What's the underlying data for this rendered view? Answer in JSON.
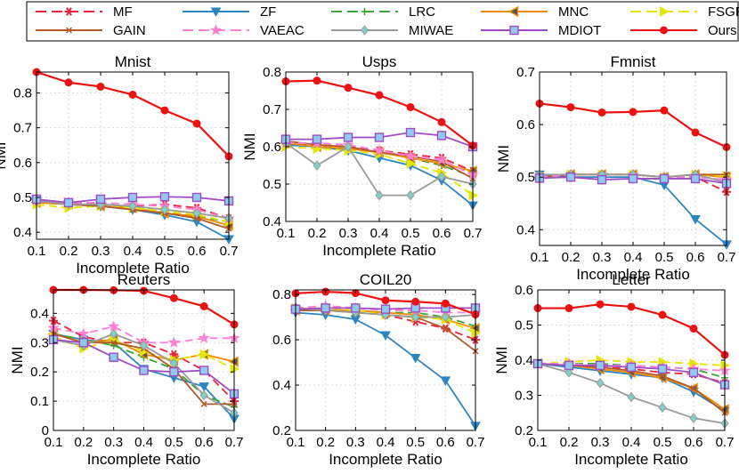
{
  "legend": {
    "entries": [
      {
        "name": "MF",
        "color": "#e8243c",
        "marker": "star6",
        "dash": "dash"
      },
      {
        "name": "ZF",
        "color": "#2e86c1",
        "marker": "tri-down",
        "dash": "solid"
      },
      {
        "name": "LRC",
        "color": "#3aa63a",
        "marker": "plus",
        "dash": "dash"
      },
      {
        "name": "MNC",
        "color": "#f08a00",
        "marker": "tri-left",
        "dash": "solid"
      },
      {
        "name": "FSGR",
        "color": "#e3e600",
        "marker": "tri-right",
        "dash": "dash"
      },
      {
        "name": "GAIN",
        "color": "#b25a2a",
        "marker": "x",
        "dash": "solid"
      },
      {
        "name": "VAEAC",
        "color": "#ff7fd5",
        "marker": "star5",
        "dash": "dash"
      },
      {
        "name": "MIWAE",
        "color": "#9a9a9a",
        "marker": "diamond",
        "dash": "solid"
      },
      {
        "name": "MDIOT",
        "color": "#a04cc4",
        "marker": "square",
        "dash": "solid"
      },
      {
        "name": "Ours",
        "color": "#ee1111",
        "marker": "circle",
        "dash": "solid"
      }
    ]
  },
  "chart_data": [
    {
      "type": "line",
      "title": "Mnist",
      "xlabel": "Incomplete Ratio",
      "ylabel": "NMI",
      "x": [
        0.1,
        0.2,
        0.3,
        0.4,
        0.5,
        0.6,
        0.7
      ],
      "xlim": [
        0.1,
        0.7
      ],
      "ylim": [
        0.38,
        0.86
      ],
      "yticks": [
        0.4,
        0.5,
        0.6,
        0.7,
        0.8
      ],
      "ytick_labels": [
        "0.4",
        "0.5",
        "0.6",
        "0.7",
        "0.8"
      ],
      "xtick_labels": [
        "0.1",
        "0.2",
        "0.3",
        "0.4",
        "0.5",
        "0.6",
        "0.7"
      ],
      "series": [
        {
          "name": "MF",
          "values": [
            0.49,
            0.485,
            0.48,
            0.475,
            0.48,
            0.47,
            0.44
          ]
        },
        {
          "name": "ZF",
          "values": [
            0.49,
            0.48,
            0.475,
            0.465,
            0.45,
            0.43,
            0.38
          ]
        },
        {
          "name": "LRC",
          "values": [
            0.485,
            0.48,
            0.48,
            0.47,
            0.46,
            0.445,
            0.43
          ]
        },
        {
          "name": "MNC",
          "values": [
            0.485,
            0.48,
            0.475,
            0.47,
            0.455,
            0.445,
            0.42
          ]
        },
        {
          "name": "FSGR",
          "values": [
            0.48,
            0.47,
            0.475,
            0.47,
            0.46,
            0.45,
            0.43
          ]
        },
        {
          "name": "GAIN",
          "values": [
            0.49,
            0.48,
            0.475,
            0.465,
            0.455,
            0.44,
            0.41
          ]
        },
        {
          "name": "VAEAC",
          "values": [
            0.49,
            0.485,
            0.485,
            0.48,
            0.475,
            0.465,
            0.44
          ]
        },
        {
          "name": "MIWAE",
          "values": [
            0.49,
            0.48,
            0.48,
            0.475,
            0.465,
            0.455,
            0.44
          ]
        },
        {
          "name": "MDIOT",
          "values": [
            0.495,
            0.485,
            0.495,
            0.5,
            0.502,
            0.5,
            0.49
          ]
        },
        {
          "name": "Ours",
          "values": [
            0.86,
            0.83,
            0.818,
            0.795,
            0.75,
            0.712,
            0.618
          ]
        }
      ]
    },
    {
      "type": "line",
      "title": "Usps",
      "xlabel": "Incomplete Ratio",
      "ylabel": "NMI",
      "x": [
        0.1,
        0.2,
        0.3,
        0.4,
        0.5,
        0.6,
        0.7
      ],
      "xlim": [
        0.1,
        0.7
      ],
      "ylim": [
        0.4,
        0.8
      ],
      "yticks": [
        0.4,
        0.5,
        0.6,
        0.7,
        0.8
      ],
      "ytick_labels": [
        "0.4",
        "0.5",
        "0.6",
        "0.7",
        "0.8"
      ],
      "xtick_labels": [
        "0.1",
        "0.2",
        "0.3",
        "0.4",
        "0.5",
        "0.6",
        "0.7"
      ],
      "series": [
        {
          "name": "MF",
          "values": [
            0.61,
            0.605,
            0.6,
            0.59,
            0.58,
            0.57,
            0.535
          ]
        },
        {
          "name": "ZF",
          "values": [
            0.605,
            0.6,
            0.59,
            0.57,
            0.55,
            0.51,
            0.443
          ]
        },
        {
          "name": "LRC",
          "values": [
            0.61,
            0.6,
            0.595,
            0.585,
            0.57,
            0.55,
            0.52
          ]
        },
        {
          "name": "MNC",
          "values": [
            0.61,
            0.6,
            0.595,
            0.585,
            0.57,
            0.555,
            0.535
          ]
        },
        {
          "name": "FSGR",
          "values": [
            0.6,
            0.595,
            0.59,
            0.58,
            0.555,
            0.53,
            0.47
          ]
        },
        {
          "name": "GAIN",
          "values": [
            0.615,
            0.605,
            0.6,
            0.585,
            0.575,
            0.56,
            0.515
          ]
        },
        {
          "name": "VAEAC",
          "values": [
            0.61,
            0.61,
            0.605,
            0.59,
            0.575,
            0.565,
            0.525
          ]
        },
        {
          "name": "MIWAE",
          "values": [
            0.61,
            0.55,
            0.6,
            0.47,
            0.47,
            0.52,
            0.5
          ]
        },
        {
          "name": "MDIOT",
          "values": [
            0.62,
            0.62,
            0.625,
            0.625,
            0.638,
            0.63,
            0.6
          ]
        },
        {
          "name": "Ours",
          "values": [
            0.775,
            0.777,
            0.758,
            0.738,
            0.706,
            0.666,
            0.603
          ]
        }
      ]
    },
    {
      "type": "line",
      "title": "Fmnist",
      "xlabel": "Incomplete Ratio",
      "ylabel": "NMI",
      "x": [
        0.1,
        0.2,
        0.3,
        0.4,
        0.5,
        0.6,
        0.7
      ],
      "xlim": [
        0.1,
        0.7
      ],
      "ylim": [
        0.37,
        0.7
      ],
      "yticks": [
        0.4,
        0.5,
        0.6,
        0.7
      ],
      "ytick_labels": [
        "0.4",
        "0.5",
        "0.6",
        "0.7"
      ],
      "xtick_labels": [
        "0.1",
        "0.2",
        "0.3",
        "0.4",
        "0.5",
        "0.6",
        "0.7"
      ],
      "series": [
        {
          "name": "MF",
          "values": [
            0.5,
            0.505,
            0.505,
            0.505,
            0.5,
            0.5,
            0.472
          ]
        },
        {
          "name": "ZF",
          "values": [
            0.505,
            0.5,
            0.5,
            0.5,
            0.485,
            0.42,
            0.372
          ]
        },
        {
          "name": "LRC",
          "values": [
            0.5,
            0.505,
            0.505,
            0.505,
            0.5,
            0.505,
            0.5
          ]
        },
        {
          "name": "MNC",
          "values": [
            0.5,
            0.505,
            0.505,
            0.505,
            0.5,
            0.505,
            0.5
          ]
        },
        {
          "name": "FSGR",
          "values": [
            0.5,
            0.505,
            0.505,
            0.505,
            0.5,
            0.505,
            0.502
          ]
        },
        {
          "name": "GAIN",
          "values": [
            0.5,
            0.505,
            0.505,
            0.505,
            0.5,
            0.505,
            0.505
          ]
        },
        {
          "name": "VAEAC",
          "values": [
            0.5,
            0.505,
            0.505,
            0.505,
            0.5,
            0.5,
            0.495
          ]
        },
        {
          "name": "MIWAE",
          "values": [
            0.505,
            0.505,
            0.505,
            0.505,
            0.5,
            0.505,
            0.49
          ]
        },
        {
          "name": "MDIOT",
          "values": [
            0.498,
            0.5,
            0.495,
            0.497,
            0.497,
            0.497,
            0.488
          ]
        },
        {
          "name": "Ours",
          "values": [
            0.64,
            0.633,
            0.623,
            0.624,
            0.627,
            0.585,
            0.557
          ]
        }
      ]
    },
    {
      "type": "line",
      "title": "Reuters",
      "xlabel": "Incomplete Ratio",
      "ylabel": "NMI",
      "x": [
        0.1,
        0.2,
        0.3,
        0.4,
        0.5,
        0.6,
        0.7
      ],
      "xlim": [
        0.1,
        0.7
      ],
      "ylim": [
        0,
        0.48
      ],
      "yticks": [
        0,
        0.1,
        0.2,
        0.3,
        0.4
      ],
      "ytick_labels": [
        "0",
        "0.1",
        "0.2",
        "0.3",
        "0.4"
      ],
      "xtick_labels": [
        "0.1",
        "0.2",
        "0.3",
        "0.4",
        "0.5",
        "0.6",
        "0.7"
      ],
      "series": [
        {
          "name": "MF",
          "values": [
            0.375,
            0.32,
            0.3,
            0.3,
            0.26,
            0.205,
            0.1
          ]
        },
        {
          "name": "ZF",
          "values": [
            0.33,
            0.31,
            0.3,
            0.21,
            0.18,
            0.15,
            0.04
          ]
        },
        {
          "name": "LRC",
          "values": [
            0.33,
            0.31,
            0.29,
            0.25,
            0.21,
            0.12,
            0.08
          ]
        },
        {
          "name": "MNC",
          "values": [
            0.33,
            0.3,
            0.31,
            0.26,
            0.24,
            0.26,
            0.235
          ]
        },
        {
          "name": "FSGR",
          "values": [
            0.32,
            0.28,
            0.31,
            0.27,
            0.24,
            0.26,
            0.21
          ]
        },
        {
          "name": "GAIN",
          "values": [
            0.33,
            0.3,
            0.3,
            0.28,
            0.21,
            0.09,
            0.09
          ]
        },
        {
          "name": "VAEAC",
          "values": [
            0.35,
            0.33,
            0.355,
            0.3,
            0.3,
            0.315,
            0.315
          ]
        },
        {
          "name": "MIWAE",
          "values": [
            0.31,
            0.29,
            0.33,
            0.29,
            0.23,
            0.12,
            0.06
          ]
        },
        {
          "name": "MDIOT",
          "values": [
            0.31,
            0.3,
            0.25,
            0.205,
            0.2,
            0.205,
            0.125
          ]
        },
        {
          "name": "Ours",
          "values": [
            0.48,
            0.48,
            0.479,
            0.477,
            0.452,
            0.424,
            0.362
          ]
        }
      ]
    },
    {
      "type": "line",
      "title": "COIL20",
      "xlabel": "Incomplete Ratio",
      "ylabel": "",
      "x": [
        0.1,
        0.2,
        0.3,
        0.4,
        0.5,
        0.6,
        0.7
      ],
      "xlim": [
        0.1,
        0.7
      ],
      "ylim": [
        0.2,
        0.82
      ],
      "yticks": [
        0.2,
        0.4,
        0.6,
        0.8
      ],
      "ytick_labels": [
        "0.2",
        "0.4",
        "0.6",
        "0.8"
      ],
      "xtick_labels": [
        "0.1",
        "0.2",
        "0.3",
        "0.4",
        "0.5",
        "0.6",
        "0.7"
      ],
      "series": [
        {
          "name": "MF",
          "values": [
            0.74,
            0.74,
            0.73,
            0.71,
            0.68,
            0.65,
            0.6
          ]
        },
        {
          "name": "ZF",
          "values": [
            0.72,
            0.71,
            0.69,
            0.62,
            0.52,
            0.42,
            0.22
          ]
        },
        {
          "name": "LRC",
          "values": [
            0.73,
            0.73,
            0.73,
            0.72,
            0.72,
            0.7,
            0.66
          ]
        },
        {
          "name": "MNC",
          "values": [
            0.73,
            0.73,
            0.73,
            0.72,
            0.71,
            0.69,
            0.65
          ]
        },
        {
          "name": "FSGR",
          "values": [
            0.74,
            0.74,
            0.73,
            0.71,
            0.7,
            0.69,
            0.63
          ]
        },
        {
          "name": "GAIN",
          "values": [
            0.73,
            0.73,
            0.72,
            0.71,
            0.7,
            0.65,
            0.55
          ]
        },
        {
          "name": "VAEAC",
          "values": [
            0.74,
            0.75,
            0.74,
            0.73,
            0.73,
            0.72,
            0.72
          ]
        },
        {
          "name": "MIWAE",
          "values": [
            0.74,
            0.73,
            0.72,
            0.71,
            0.7,
            0.7,
            0.71
          ]
        },
        {
          "name": "MDIOT",
          "values": [
            0.735,
            0.74,
            0.74,
            0.735,
            0.74,
            0.74,
            0.74
          ]
        },
        {
          "name": "Ours",
          "values": [
            0.805,
            0.812,
            0.806,
            0.774,
            0.768,
            0.76,
            0.712
          ]
        }
      ]
    },
    {
      "type": "line",
      "title": "Letter",
      "xlabel": "Incomplete Ratio",
      "ylabel": "NMI",
      "x": [
        0.1,
        0.2,
        0.3,
        0.4,
        0.5,
        0.6,
        0.7
      ],
      "xlim": [
        0.1,
        0.7
      ],
      "ylim": [
        0.2,
        0.6
      ],
      "yticks": [
        0.2,
        0.3,
        0.4,
        0.5,
        0.6
      ],
      "ytick_labels": [
        "0.2",
        "0.3",
        "0.4",
        "0.5",
        "0.6"
      ],
      "xtick_labels": [
        "0.1",
        "0.2",
        "0.3",
        "0.4",
        "0.5",
        "0.6",
        "0.7"
      ],
      "series": [
        {
          "name": "MF",
          "values": [
            0.39,
            0.385,
            0.38,
            0.375,
            0.365,
            0.36,
            0.335
          ]
        },
        {
          "name": "ZF",
          "values": [
            0.39,
            0.38,
            0.37,
            0.36,
            0.35,
            0.31,
            0.255
          ]
        },
        {
          "name": "LRC",
          "values": [
            0.39,
            0.39,
            0.39,
            0.385,
            0.38,
            0.375,
            0.35
          ]
        },
        {
          "name": "MNC",
          "values": [
            0.39,
            0.385,
            0.375,
            0.365,
            0.35,
            0.32,
            0.26
          ]
        },
        {
          "name": "FSGR",
          "values": [
            0.39,
            0.395,
            0.4,
            0.395,
            0.395,
            0.39,
            0.385
          ]
        },
        {
          "name": "GAIN",
          "values": [
            0.39,
            0.385,
            0.38,
            0.37,
            0.355,
            0.32,
            0.25
          ]
        },
        {
          "name": "VAEAC",
          "values": [
            0.39,
            0.39,
            0.385,
            0.385,
            0.38,
            0.375,
            0.37
          ]
        },
        {
          "name": "MIWAE",
          "values": [
            0.39,
            0.365,
            0.335,
            0.295,
            0.265,
            0.235,
            0.22
          ]
        },
        {
          "name": "MDIOT",
          "values": [
            0.39,
            0.385,
            0.385,
            0.38,
            0.375,
            0.365,
            0.33
          ]
        },
        {
          "name": "Ours",
          "values": [
            0.548,
            0.548,
            0.559,
            0.552,
            0.529,
            0.49,
            0.415
          ]
        }
      ]
    }
  ]
}
